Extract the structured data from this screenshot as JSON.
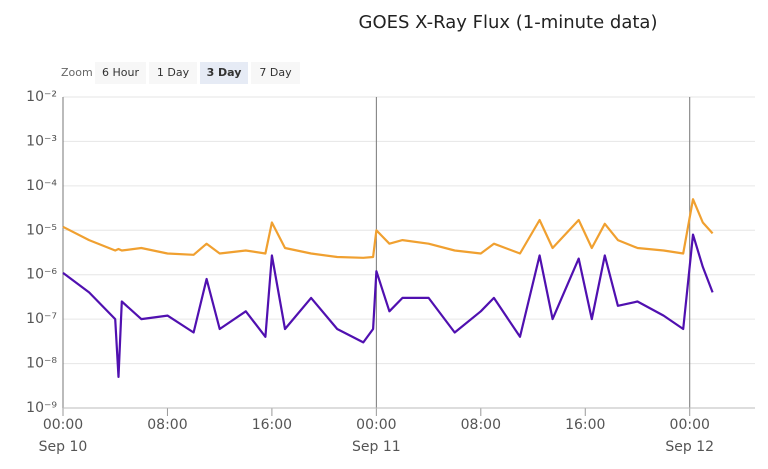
{
  "chart_data": {
    "type": "line",
    "title": "GOES X-Ray Flux (1-minute data)",
    "zoom": {
      "label": "Zoom",
      "buttons": [
        "6 Hour",
        "1 Day",
        "3 Day",
        "7 Day"
      ],
      "selected": 2
    },
    "log_y": true,
    "grid": true,
    "ylim": [
      1e-09,
      0.01
    ],
    "yticks": [
      {
        "value": 1e-09,
        "label": "10⁻⁹"
      },
      {
        "value": 1e-08,
        "label": "10⁻⁸"
      },
      {
        "value": 1e-07,
        "label": "10⁻⁷"
      },
      {
        "value": 1e-06,
        "label": "10⁻⁶"
      },
      {
        "value": 1e-05,
        "label": "10⁻⁵"
      },
      {
        "value": 0.0001,
        "label": "10⁻⁴"
      },
      {
        "value": 0.001,
        "label": "10⁻³"
      },
      {
        "value": 0.01,
        "label": "10⁻²"
      }
    ],
    "xlim": [
      "Sep 10 00:00",
      "Sep 12 05:00"
    ],
    "xticks": [
      {
        "value": "Sep 10 00:00",
        "label": "00:00"
      },
      {
        "value": "Sep 10 08:00",
        "label": "08:00"
      },
      {
        "value": "Sep 10 16:00",
        "label": "16:00"
      },
      {
        "value": "Sep 11 00:00",
        "label": "00:00"
      },
      {
        "value": "Sep 11 08:00",
        "label": "08:00"
      },
      {
        "value": "Sep 11 16:00",
        "label": "16:00"
      },
      {
        "value": "Sep 12 00:00",
        "label": "00:00"
      }
    ],
    "xdates": [
      {
        "value": "Sep 10 00:00",
        "label": "Sep 10"
      },
      {
        "value": "Sep 11 00:00",
        "label": "Sep 11"
      },
      {
        "value": "Sep 12 00:00",
        "label": "Sep 12"
      }
    ],
    "x": [
      "Sep 10 00:00",
      "Sep 10 02:00",
      "Sep 10 04:00",
      "Sep 10 04:15",
      "Sep 10 04:30",
      "Sep 10 06:00",
      "Sep 10 08:00",
      "Sep 10 10:00",
      "Sep 10 11:00",
      "Sep 10 12:00",
      "Sep 10 14:00",
      "Sep 10 15:30",
      "Sep 10 16:00",
      "Sep 10 17:00",
      "Sep 10 19:00",
      "Sep 10 21:00",
      "Sep 10 23:00",
      "Sep 10 23:45",
      "Sep 11 00:00",
      "Sep 11 01:00",
      "Sep 11 02:00",
      "Sep 11 04:00",
      "Sep 11 06:00",
      "Sep 11 08:00",
      "Sep 11 09:00",
      "Sep 11 11:00",
      "Sep 11 12:30",
      "Sep 11 13:30",
      "Sep 11 15:30",
      "Sep 11 16:30",
      "Sep 11 17:30",
      "Sep 11 18:30",
      "Sep 11 20:00",
      "Sep 11 22:00",
      "Sep 11 23:30",
      "Sep 12 00:15",
      "Sep 12 01:00",
      "Sep 12 01:45"
    ],
    "series": [
      {
        "color": "#f0a030",
        "values": [
          1.2e-05,
          6e-06,
          3.5e-06,
          3.8e-06,
          3.5e-06,
          4e-06,
          3e-06,
          2.8e-06,
          5e-06,
          3e-06,
          3.5e-06,
          3e-06,
          1.5e-05,
          4e-06,
          3e-06,
          2.5e-06,
          2.4e-06,
          2.5e-06,
          1e-05,
          5e-06,
          6e-06,
          5e-06,
          3.5e-06,
          3e-06,
          5e-06,
          3e-06,
          1.7e-05,
          4e-06,
          1.7e-05,
          4e-06,
          1.4e-05,
          6e-06,
          4e-06,
          3.5e-06,
          3e-06,
          5e-05,
          1.5e-05,
          8.5e-06
        ]
      },
      {
        "color": "#5010b0",
        "values": [
          1.1e-06,
          4e-07,
          1e-07,
          5e-09,
          2.5e-07,
          1e-07,
          1.2e-07,
          5e-08,
          8e-07,
          6e-08,
          1.5e-07,
          4e-08,
          2.7e-06,
          6e-08,
          3e-07,
          6e-08,
          3e-08,
          6e-08,
          1.2e-06,
          1.5e-07,
          3e-07,
          3e-07,
          5e-08,
          1.5e-07,
          3e-07,
          4e-08,
          2.7e-06,
          1e-07,
          2.3e-06,
          1e-07,
          2.7e-06,
          2e-07,
          2.5e-07,
          1.2e-07,
          6e-08,
          8e-06,
          1.5e-06,
          4e-07
        ]
      }
    ]
  }
}
